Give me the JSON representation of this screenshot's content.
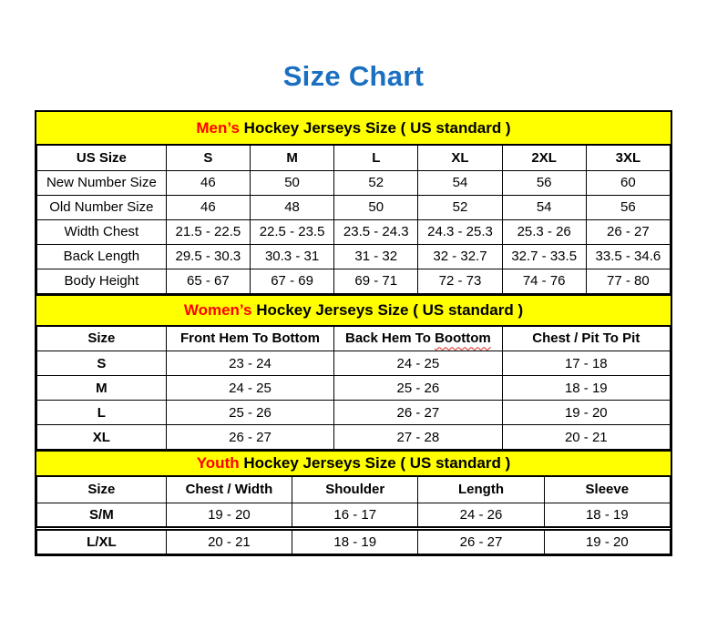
{
  "page": {
    "title": "Size Chart"
  },
  "colors": {
    "title_blue": "#1b6fc1",
    "band_yellow": "#ffff00",
    "accent_red": "#ff0000",
    "border_black": "#000000"
  },
  "tables": [
    {
      "id": "mens",
      "band": {
        "highlight": "Men’s",
        "rest": " Hockey Jerseys Size ( US standard )"
      },
      "columns": [
        "US Size",
        "S",
        "M",
        "L",
        "XL",
        "2XL",
        "3XL"
      ],
      "rows": [
        [
          "New Number Size",
          "46",
          "50",
          "52",
          "54",
          "56",
          "60"
        ],
        [
          "Old Number Size",
          "46",
          "48",
          "50",
          "52",
          "54",
          "56"
        ],
        [
          "Width Chest",
          "21.5 - 22.5",
          "22.5 - 23.5",
          "23.5 - 24.3",
          "24.3 - 25.3",
          "25.3 - 26",
          "26 - 27"
        ],
        [
          "Back Length",
          "29.5 - 30.3",
          "30.3 - 31",
          "31 - 32",
          "32 - 32.7",
          "32.7 - 33.5",
          "33.5 - 34.6"
        ],
        [
          "Body Height",
          "65 - 67",
          "67 - 69",
          "69 - 71",
          "72 - 73",
          "74 - 76",
          "77 - 80"
        ]
      ]
    },
    {
      "id": "womens",
      "band": {
        "highlight": "Women’s",
        "rest": " Hockey Jerseys Size ( US standard )"
      },
      "columns": [
        "Size",
        "Front Hem To Bottom",
        "Back Hem To Boottom",
        "Chest / Pit To Pit"
      ],
      "misspell": {
        "col_index": 2,
        "prefix": "Back Hem To ",
        "word": "Boottom"
      },
      "rows": [
        [
          "S",
          "23 - 24",
          "24 - 25",
          "17 - 18"
        ],
        [
          "M",
          "24 - 25",
          "25 - 26",
          "18 - 19"
        ],
        [
          "L",
          "25 - 26",
          "26 - 27",
          "19 - 20"
        ],
        [
          "XL",
          "26 - 27",
          "27 - 28",
          "20 - 21"
        ]
      ]
    },
    {
      "id": "youth",
      "band": {
        "highlight": "Youth",
        "rest": " Hockey Jerseys Size ( US standard )"
      },
      "columns": [
        "Size",
        "Chest / Width",
        "Shoulder",
        "Length",
        "Sleeve"
      ],
      "rows": [
        [
          "S/M",
          "19 - 20",
          "16 - 17",
          "24 - 26",
          "18 - 19"
        ],
        [
          "L/XL",
          "20 - 21",
          "18 - 19",
          "26 - 27",
          "19 - 20"
        ]
      ]
    }
  ]
}
